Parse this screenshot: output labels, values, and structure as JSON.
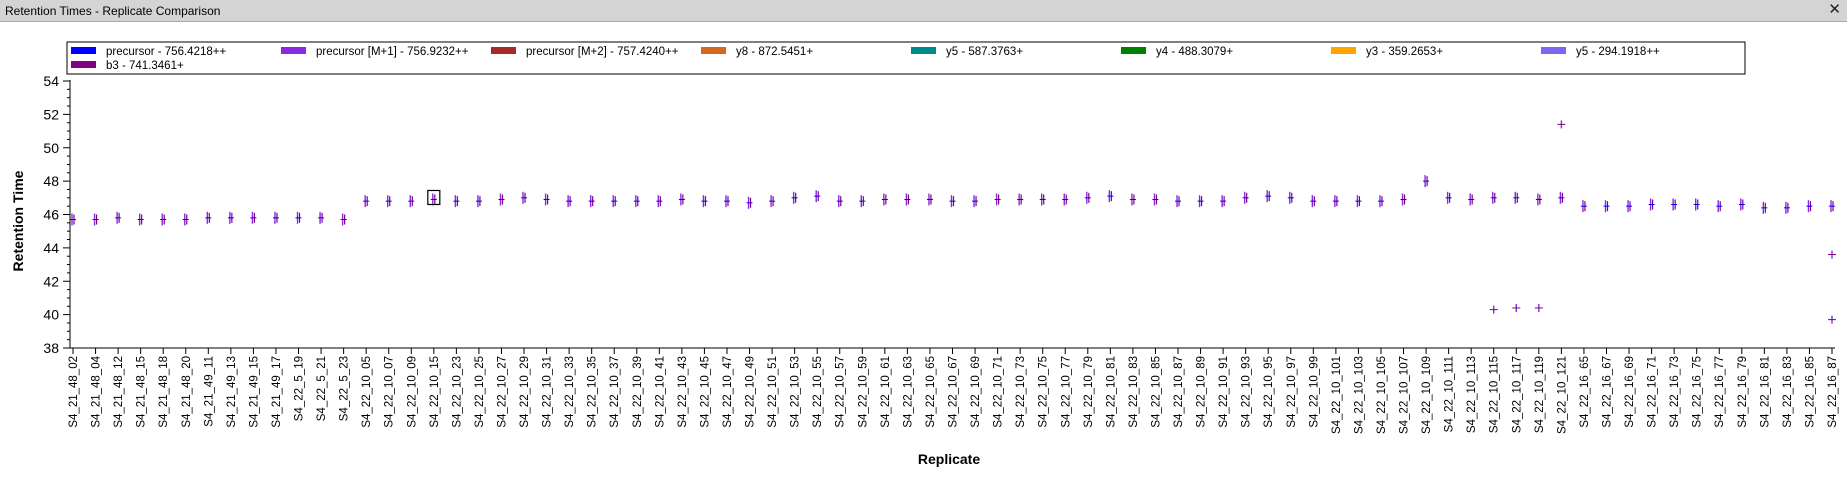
{
  "window": {
    "title": "Retention Times - Replicate Comparison",
    "close_icon": "close-icon"
  },
  "chart_data": {
    "type": "scatter",
    "title": "",
    "xlabel": "Replicate",
    "ylabel": "Retention Time",
    "ylim": [
      38,
      54
    ],
    "yticks": [
      38,
      40,
      42,
      44,
      46,
      48,
      50,
      52,
      54
    ],
    "grid": false,
    "legend_position": "top",
    "legend": [
      {
        "name": "precursor - 756.4218++",
        "color": "#0000ff"
      },
      {
        "name": "precursor [M+1] - 756.9232++",
        "color": "#8a2be2"
      },
      {
        "name": "precursor [M+2] - 757.4240++",
        "color": "#a52a2a"
      },
      {
        "name": "y8 - 872.5451+",
        "color": "#d2691e"
      },
      {
        "name": "y5 - 587.3763+",
        "color": "#008b8b"
      },
      {
        "name": "y4 - 488.3079+",
        "color": "#008000"
      },
      {
        "name": "y3 - 359.2653+",
        "color": "#ffa500"
      },
      {
        "name": "y5 - 294.1918++",
        "color": "#7b68ee"
      },
      {
        "name": "b3 - 741.3461+",
        "color": "#800080"
      }
    ],
    "x_labels": [
      "S4_21_48_02",
      "S4_21_48_04",
      "S4_21_48_12",
      "S4_21_48_15",
      "S4_21_48_18",
      "S4_21_48_20",
      "S4_21_49_11",
      "S4_21_49_13",
      "S4_21_49_15",
      "S4_21_49_17",
      "S4_22_5_19",
      "S4_22_5_21",
      "S4_22_5_23",
      "S4_22_10_05",
      "S4_22_10_07",
      "S4_22_10_09",
      "S4_22_10_15",
      "S4_22_10_23",
      "S4_22_10_25",
      "S4_22_10_27",
      "S4_22_10_29",
      "S4_22_10_31",
      "S4_22_10_33",
      "S4_22_10_35",
      "S4_22_10_37",
      "S4_22_10_39",
      "S4_22_10_41",
      "S4_22_10_43",
      "S4_22_10_45",
      "S4_22_10_47",
      "S4_22_10_49",
      "S4_22_10_51",
      "S4_22_10_53",
      "S4_22_10_55",
      "S4_22_10_57",
      "S4_22_10_59",
      "S4_22_10_61",
      "S4_22_10_63",
      "S4_22_10_65",
      "S4_22_10_67",
      "S4_22_10_69",
      "S4_22_10_71",
      "S4_22_10_73",
      "S4_22_10_75",
      "S4_22_10_77",
      "S4_22_10_79",
      "S4_22_10_81",
      "S4_22_10_83",
      "S4_22_10_85",
      "S4_22_10_87",
      "S4_22_10_89",
      "S4_22_10_91",
      "S4_22_10_93",
      "S4_22_10_95",
      "S4_22_10_97",
      "S4_22_10_99",
      "S4_22_10_101",
      "S4_22_10_103",
      "S4_22_10_105",
      "S4_22_10_107",
      "S4_22_10_109",
      "S4_22_10_111",
      "S4_22_10_113",
      "S4_22_10_115",
      "S4_22_10_117",
      "S4_22_10_119",
      "S4_22_10_121",
      "S4_22_16_65",
      "S4_22_16_67",
      "S4_22_16_69",
      "S4_22_16_71",
      "S4_22_16_73",
      "S4_22_16_75",
      "S4_22_16_77",
      "S4_22_16_79",
      "S4_22_16_81",
      "S4_22_16_83",
      "S4_22_16_85",
      "S4_22_16_87"
    ],
    "labeled_rt": [
      45.7,
      45.7,
      45.8,
      45.7,
      45.7,
      45.7,
      45.8,
      45.8,
      45.8,
      45.8,
      45.8,
      45.8,
      45.7,
      46.8,
      46.8,
      46.8,
      46.9,
      46.8,
      46.8,
      46.9,
      47.0,
      46.9,
      46.8,
      46.8,
      46.8,
      46.8,
      46.8,
      46.9,
      46.8,
      46.8,
      46.7,
      46.8,
      47.0,
      47.1,
      46.8,
      46.8,
      46.9,
      46.9,
      46.9,
      46.8,
      46.8,
      46.9,
      46.9,
      46.9,
      46.9,
      47.0,
      47.1,
      46.9,
      46.9,
      46.8,
      46.8,
      46.8,
      47.0,
      47.1,
      47.0,
      46.8,
      46.8,
      46.8,
      46.8,
      46.9,
      48.0,
      47.0,
      46.9,
      47.0,
      47.0,
      46.9,
      47.0,
      46.5,
      46.5,
      46.5,
      46.6,
      46.6,
      46.6,
      46.5,
      46.6,
      46.4,
      46.4,
      46.5,
      46.5
    ],
    "outliers": [
      {
        "replicate": "S4_22_10_121",
        "rt": 51.4
      },
      {
        "replicate": "S4_22_10_115",
        "rt": 40.3
      },
      {
        "replicate": "S4_22_10_117",
        "rt": 40.4
      },
      {
        "replicate": "S4_22_10_119",
        "rt": 40.4
      },
      {
        "replicate": "S4_22_16_87",
        "rt": 39.7
      },
      {
        "replicate": "S4_22_16_87",
        "rt": 43.6
      }
    ],
    "selected_replicate": "S4_22_10_15"
  }
}
